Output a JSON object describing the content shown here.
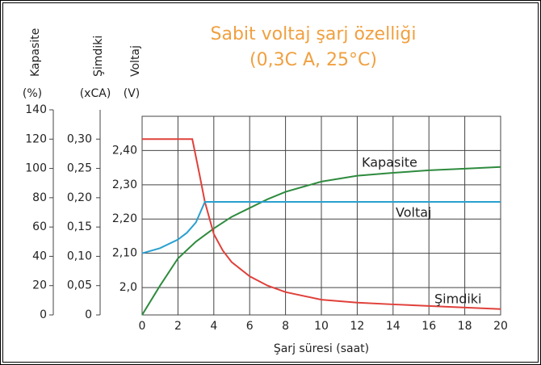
{
  "chart_data": {
    "type": "line",
    "title": "Sabit voltaj şarj özelliği",
    "subtitle": "(0,3C A, 25°C)",
    "xlabel": "Şarj süresi (saat)",
    "ylabel": "Kapasite",
    "ylabel_unit": "(%)",
    "y2label": "Şimdiki",
    "y2label_unit": "(xCA)",
    "y3label": "Voltaj",
    "y3label_unit": "(V)",
    "xlim": [
      0,
      20
    ],
    "xticks": [
      0,
      2,
      4,
      6,
      8,
      10,
      12,
      14,
      16,
      18,
      20
    ],
    "ylim": [
      0,
      140
    ],
    "yticks": [
      0,
      20,
      40,
      60,
      80,
      100,
      120,
      140
    ],
    "y2lim": [
      0,
      0.35
    ],
    "y2ticks": [
      {
        "value": 0,
        "label": "0"
      },
      {
        "value": 0.05,
        "label": "0,05"
      },
      {
        "value": 0.1,
        "label": "0,10"
      },
      {
        "value": 0.15,
        "label": "0,15"
      },
      {
        "value": 0.2,
        "label": "0,20"
      },
      {
        "value": 0.25,
        "label": "0,25"
      },
      {
        "value": 0.3,
        "label": "0,30"
      }
    ],
    "y3lim": [
      1.92,
      2.5
    ],
    "y3ticks": [
      {
        "value": 2.0,
        "label": "2,0"
      },
      {
        "value": 2.1,
        "label": "2,10"
      },
      {
        "value": 2.2,
        "label": "2,20"
      },
      {
        "value": 2.3,
        "label": "2,30"
      },
      {
        "value": 2.4,
        "label": "2,40"
      }
    ],
    "grid": true,
    "series": [
      {
        "name": "Kapasite",
        "color": "#2e8b3e",
        "axis": "y",
        "x": [
          0,
          1,
          2,
          3,
          4,
          5,
          6,
          7,
          8,
          10,
          12,
          14,
          16,
          18,
          20
        ],
        "values": [
          0,
          20,
          38.6,
          50,
          59,
          67,
          73,
          79,
          84,
          91,
          95,
          97,
          98.7,
          99.8,
          101
        ]
      },
      {
        "name": "Şimdiki",
        "color": "#e0403a",
        "axis": "y2",
        "x": [
          0,
          2.8,
          3.2,
          3.5,
          4,
          4.5,
          5,
          6,
          7,
          8,
          10,
          12,
          14,
          17,
          20
        ],
        "values": [
          0.3,
          0.3,
          0.24,
          0.193,
          0.138,
          0.11,
          0.09,
          0.066,
          0.05,
          0.039,
          0.026,
          0.021,
          0.018,
          0.014,
          0.01
        ]
      },
      {
        "name": "Voltaj",
        "color": "#29a0d0",
        "axis": "y3",
        "x": [
          0,
          1,
          2,
          2.5,
          3,
          3.5,
          20
        ],
        "values": [
          2.1,
          2.115,
          2.14,
          2.16,
          2.19,
          2.25,
          2.25
        ]
      }
    ]
  }
}
